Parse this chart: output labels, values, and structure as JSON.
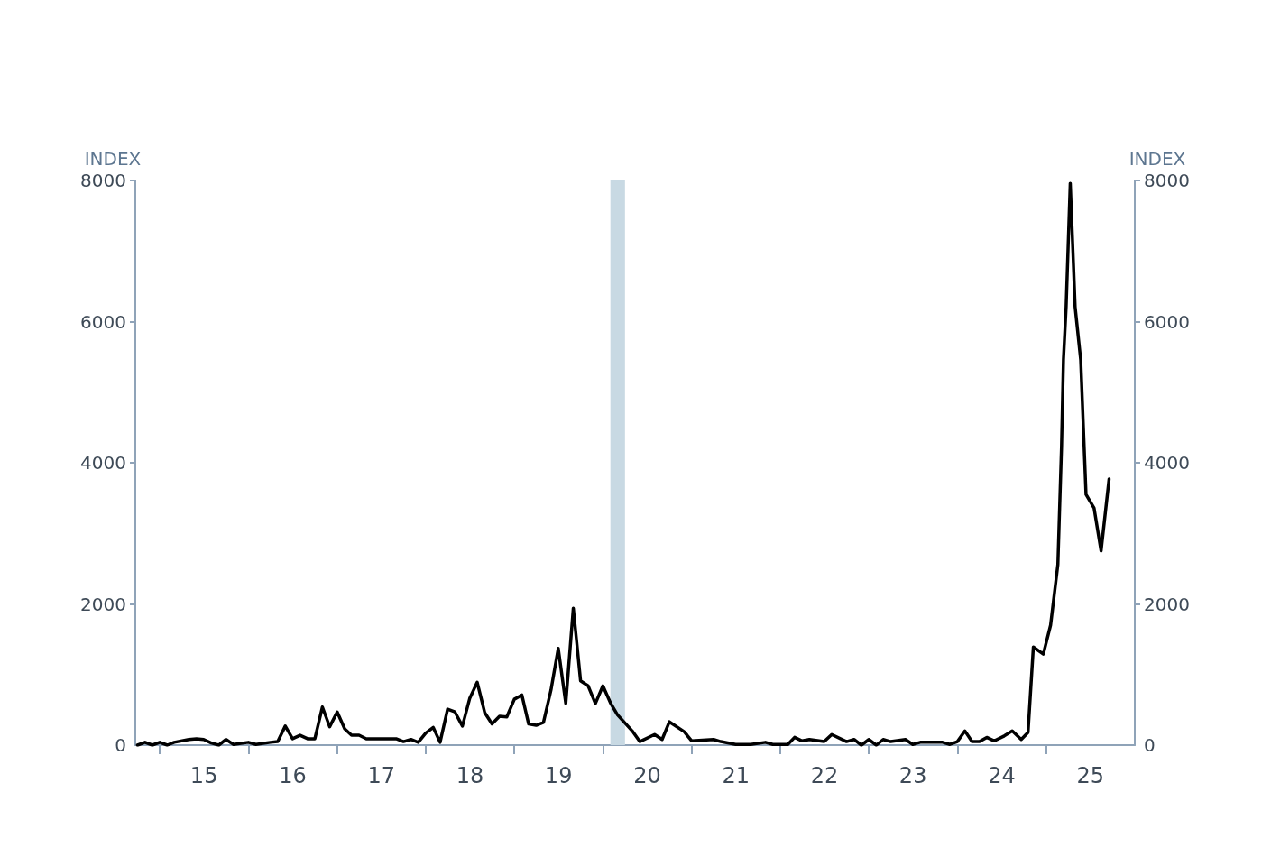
{
  "chart_data": {
    "type": "line",
    "ylabel": "INDEX",
    "y2label": "INDEX",
    "xlim": [
      "2014-09-22",
      "2026-01-01"
    ],
    "xticks": [
      {
        "value": "2015-01-01",
        "label": null
      },
      {
        "value": "2015-07-02",
        "label": "15"
      },
      {
        "value": "2016-01-01",
        "label": null
      },
      {
        "value": "2016-07-02",
        "label": "16"
      },
      {
        "value": "2017-01-01",
        "label": null
      },
      {
        "value": "2017-07-02",
        "label": "17"
      },
      {
        "value": "2018-01-01",
        "label": null
      },
      {
        "value": "2018-07-02",
        "label": "18"
      },
      {
        "value": "2019-01-01",
        "label": null
      },
      {
        "value": "2019-07-02",
        "label": "19"
      },
      {
        "value": "2020-01-01",
        "label": null
      },
      {
        "value": "2020-07-02",
        "label": "20"
      },
      {
        "value": "2021-01-01",
        "label": null
      },
      {
        "value": "2021-07-02",
        "label": "21"
      },
      {
        "value": "2022-01-01",
        "label": null
      },
      {
        "value": "2022-07-02",
        "label": "22"
      },
      {
        "value": "2023-01-01",
        "label": null
      },
      {
        "value": "2023-07-02",
        "label": "23"
      },
      {
        "value": "2024-01-01",
        "label": null
      },
      {
        "value": "2024-07-02",
        "label": "24"
      },
      {
        "value": "2025-01-01",
        "label": null
      },
      {
        "value": "2025-07-02",
        "label": "25"
      }
    ],
    "ylim": [
      0,
      8000
    ],
    "yticks": [
      0,
      2000,
      4000,
      6000,
      8000
    ],
    "y2lim": [
      0,
      8000
    ],
    "y2ticks": [
      0,
      2000,
      4000,
      6000,
      8000
    ],
    "grid": false,
    "marker": "none",
    "line_style": "solid",
    "bands": [
      {
        "axis": "x",
        "from": "2020-02-01",
        "to": "2020-04-01",
        "color": "#c8d9e3"
      }
    ],
    "series": [
      {
        "color": "#000000",
        "x": [
          "2014-10",
          "2014-11",
          "2014-12",
          "2015-01",
          "2015-02",
          "2015-03",
          "2015-05",
          "2015-06",
          "2015-07",
          "2015-08",
          "2015-09",
          "2015-10",
          "2015-11",
          "2016-01",
          "2016-02",
          "2016-04",
          "2016-05",
          "2016-06",
          "2016-07",
          "2016-08",
          "2016-09",
          "2016-10",
          "2016-11",
          "2016-12",
          "2017-01",
          "2017-02",
          "2017-03",
          "2017-04",
          "2017-05",
          "2017-09",
          "2017-10",
          "2017-11",
          "2017-12",
          "2018-01",
          "2018-02",
          "2018-03",
          "2018-04",
          "2018-05",
          "2018-06",
          "2018-07",
          "2018-08",
          "2018-09",
          "2018-10",
          "2018-11",
          "2018-12",
          "2019-01",
          "2019-02",
          "2019-03",
          "2019-04",
          "2019-05",
          "2019-06",
          "2019-07",
          "2019-08",
          "2019-09",
          "2019-10",
          "2019-11",
          "2019-12",
          "2020-01",
          "2020-02",
          "2020-03",
          "2020-05",
          "2020-06",
          "2020-08",
          "2020-09",
          "2020-10",
          "2020-12",
          "2021-01",
          "2021-04",
          "2021-05",
          "2021-07",
          "2021-09",
          "2021-11",
          "2021-12",
          "2022-02",
          "2022-03",
          "2022-04",
          "2022-05",
          "2022-07",
          "2022-08",
          "2022-10",
          "2022-11",
          "2022-12",
          "2023-01",
          "2023-02",
          "2023-03",
          "2023-04",
          "2023-06",
          "2023-07",
          "2023-08",
          "2023-11",
          "2023-12",
          "2024-01",
          "2024-02",
          "2024-03",
          "2024-04",
          "2024-05",
          "2024-06",
          "2024-07-12",
          "2024-08-14",
          "2024-09-20",
          "2024-10-18",
          "2024-11-09",
          "2024-12-20",
          "2025-01-19",
          "2025-02-18",
          "2025-03-05",
          "2025-03-13",
          "2025-03-24",
          "2025-04-10",
          "2025-04-30",
          "2025-05-23",
          "2025-06-14",
          "2025-07-17",
          "2025-08-15",
          "2025-09-17"
        ],
        "values": [
          0,
          40,
          0,
          40,
          0,
          40,
          80,
          90,
          80,
          30,
          0,
          80,
          10,
          40,
          10,
          40,
          50,
          270,
          90,
          140,
          90,
          90,
          540,
          260,
          470,
          230,
          140,
          140,
          90,
          90,
          50,
          80,
          40,
          170,
          250,
          40,
          510,
          470,
          270,
          660,
          890,
          460,
          300,
          410,
          400,
          650,
          710,
          300,
          280,
          320,
          780,
          1370,
          590,
          1940,
          910,
          840,
          590,
          840,
          600,
          430,
          200,
          50,
          150,
          80,
          330,
          190,
          60,
          80,
          50,
          10,
          10,
          40,
          10,
          10,
          110,
          60,
          80,
          50,
          150,
          50,
          80,
          0,
          80,
          0,
          80,
          50,
          80,
          10,
          40,
          40,
          10,
          50,
          200,
          50,
          50,
          110,
          60,
          130,
          200,
          80,
          180,
          1390,
          1290,
          1700,
          2560,
          4220,
          5460,
          6210,
          7960,
          6210,
          5460,
          3550,
          3360,
          2750,
          3770
        ]
      }
    ]
  }
}
